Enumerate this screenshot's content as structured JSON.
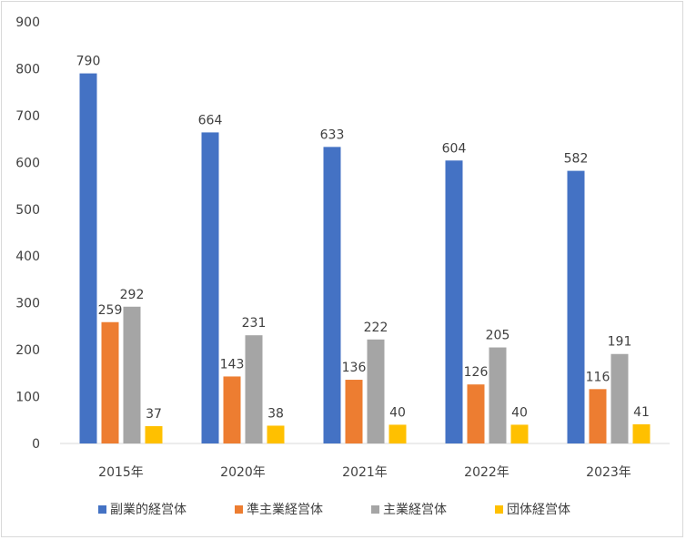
{
  "chart_data": {
    "type": "bar",
    "title": "",
    "xlabel": "",
    "ylabel": "",
    "ylim": [
      0,
      900
    ],
    "yticks": [
      0,
      100,
      200,
      300,
      400,
      500,
      600,
      700,
      800,
      900
    ],
    "grid": false,
    "legend_position": "bottom",
    "categories": [
      "2015年",
      "2020年",
      "2021年",
      "2022年",
      "2023年"
    ],
    "series": [
      {
        "name": "副業的経営体",
        "color": "#4472C4",
        "values": [
          790,
          664,
          633,
          604,
          582
        ]
      },
      {
        "name": "準主業経営体",
        "color": "#ED7D31",
        "values": [
          259,
          143,
          136,
          126,
          116
        ]
      },
      {
        "name": "主業経営体",
        "color": "#A5A5A5",
        "values": [
          292,
          231,
          222,
          205,
          191
        ]
      },
      {
        "name": "団体経営体",
        "color": "#FFC000",
        "values": [
          37,
          38,
          40,
          40,
          41
        ]
      }
    ]
  }
}
